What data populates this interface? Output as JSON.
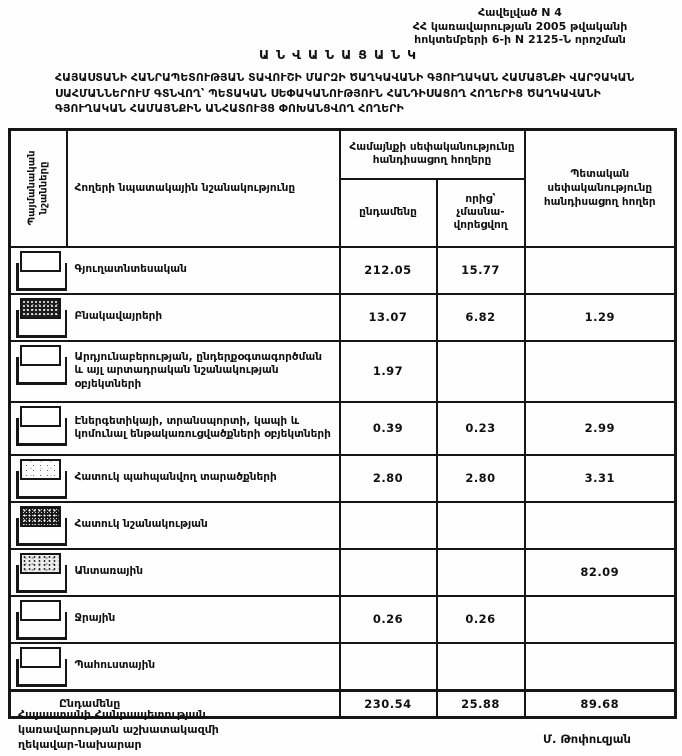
{
  "appendix": {
    "text": "Հավելված N 4\nՀՀ կառավարության 2005 թվականի\nհոկտեմբերի 6-ի N 2125-Ն որոշման"
  },
  "title": "ԱՆՎԱՆԱՑԱՆԿ",
  "subtitle": "ՀԱՅԱՍՏԱՆԻ ՀԱՆՐԱՊԵՏՈՒԹՅԱՆ ՏԱՎՈՒՇԻ ՄԱՐԶԻ ԾԱՂԿԱՎԱՆԻ ԳՅՈՒՂԱԿԱՆ ՀԱՄԱՅՆՔԻ ՎԱՐՉԱԿԱՆ ՍԱՀՄԱՆՆԵՐՈՒՄ ԳՏՆՎՈՂ՝ ՊԵՏԱԿԱՆ ՍԵՓԱԿԱՆՈՒԹՅՈՒՆ ՀԱՆԴԻՍԱՑՈՂ ՀՈՂԵՐԻՑ ԾԱՂԿԱՎԱՆԻ ԳՅՈՒՂԱԿԱՆ ՀԱՄԱՅՆՔԻՆ ԱՆՀԱՏՈՒՅՑ ՓՈԽԱՆՑՎՈՂ ՀՈՂԵՐԻ",
  "table": {
    "headers": {
      "symbols": "Պայմանական նշանները",
      "purpose": "Հողերի  նպատակային նշանակությունը",
      "community_group": "Համայնքի սեփականությունը\nհանդիսացող հողերը",
      "total_sub": "ընդամենը",
      "non_privatizable_sub": "որից՝\nչմասնա-\nվորեցվող",
      "state": "Պետական\nսեփականությունը\nհանդիսացող հողեր"
    },
    "rows": [
      {
        "symbol": "plain",
        "name": "Գյուղատնտեսական",
        "total": "212.05",
        "nonpriv": "15.77",
        "state": ""
      },
      {
        "symbol": "dark-hatch",
        "name": "Բնակավայրերի",
        "total": "13.07",
        "nonpriv": "6.82",
        "state": "1.29"
      },
      {
        "symbol": "plain",
        "name": "Արդյունաբերության, ընդերքօգտագործման և այլ արտադրական նշանակության օբյեկտների",
        "total": "1.97",
        "nonpriv": "",
        "state": ""
      },
      {
        "symbol": "plain",
        "name": "Էներգետիկայի, տրանսպորտի, կապի և կոմունալ ենթակառուցվածքների օբյեկտների",
        "total": "0.39",
        "nonpriv": "0.23",
        "state": "2.99"
      },
      {
        "symbol": "light-speckle",
        "name": "Հատուկ պահպանվող տարածքների",
        "total": "2.80",
        "nonpriv": "2.80",
        "state": "3.31"
      },
      {
        "symbol": "dark-checker",
        "name": "Հատուկ նշանակության",
        "total": "",
        "nonpriv": "",
        "state": ""
      },
      {
        "symbol": "speckle",
        "name": "Անտառային",
        "total": "",
        "nonpriv": "",
        "state": "82.09"
      },
      {
        "symbol": "plain",
        "name": "Ջրային",
        "total": "0.26",
        "nonpriv": "0.26",
        "state": ""
      },
      {
        "symbol": "plain",
        "name": "Պահուստային",
        "total": "",
        "nonpriv": "",
        "state": ""
      }
    ],
    "total_row": {
      "label": "Ընդամենը",
      "total": "230.54",
      "nonpriv": "25.88",
      "state": "89.68"
    }
  },
  "footer": {
    "left": "Հայաստանի Հանրապետության\nկառավարության աշխատակազմի\nղեկավար-նախարար",
    "signature": "Մ. Թոփուզյան"
  }
}
